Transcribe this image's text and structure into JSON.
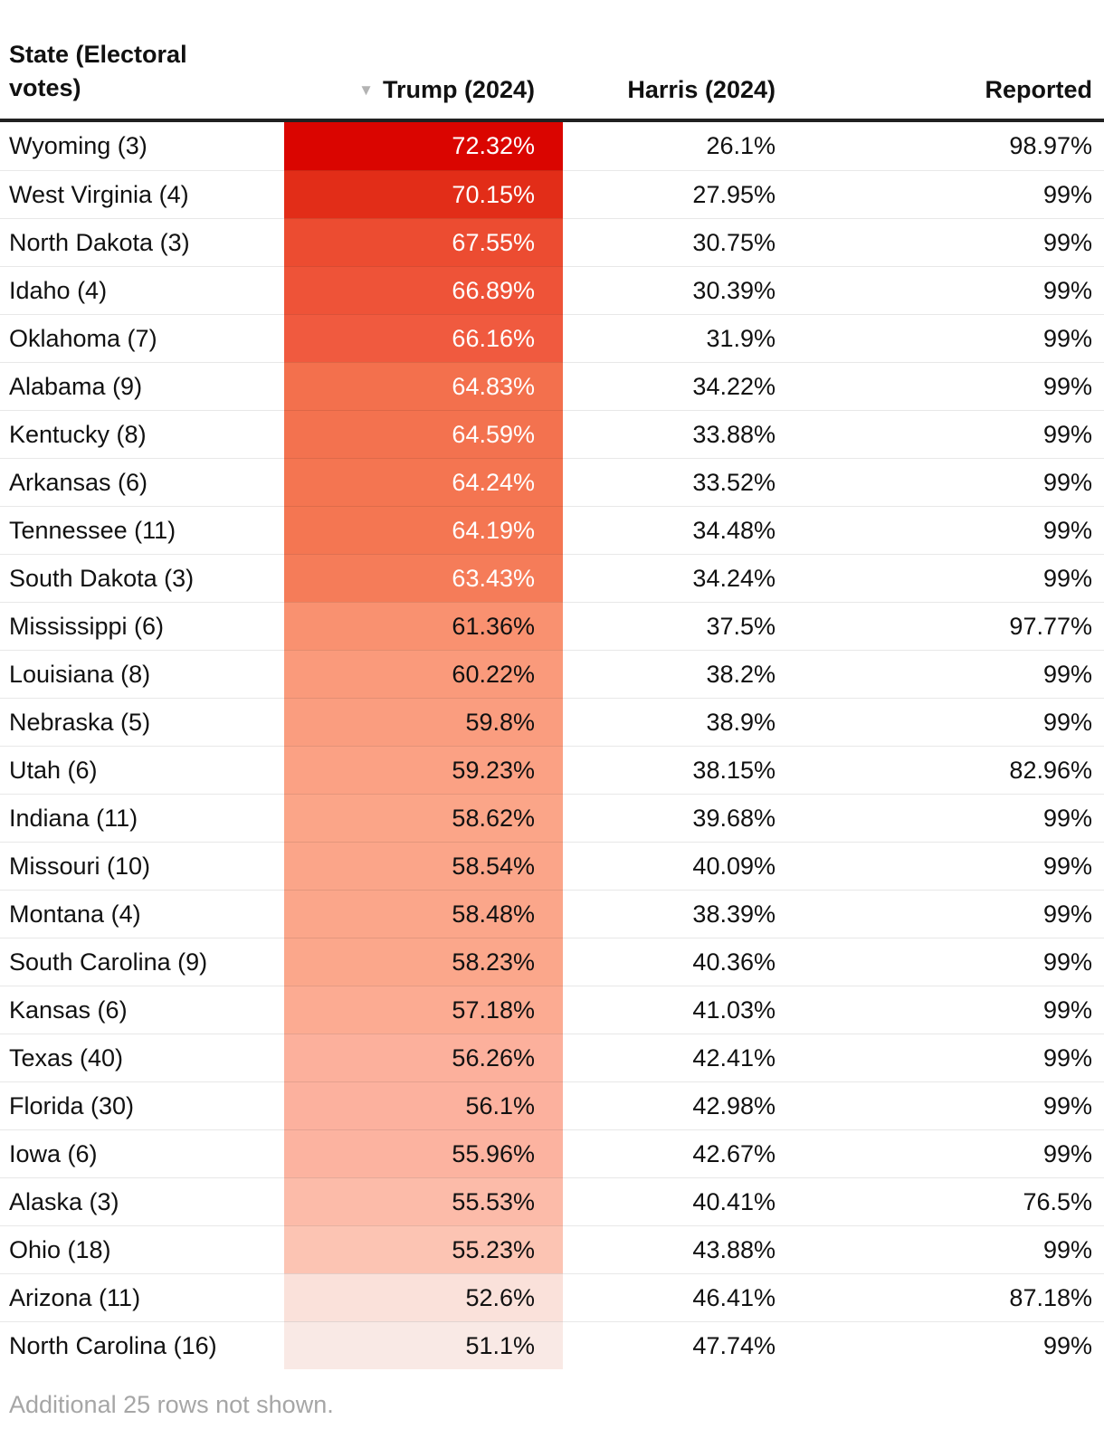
{
  "table": {
    "columns": [
      {
        "label": "State (Electoral votes)"
      },
      {
        "label": "Trump (2024)",
        "sorted": "desc"
      },
      {
        "label": "Harris (2024)"
      },
      {
        "label": "Reported"
      }
    ],
    "sort_icon": "▼",
    "rows": [
      {
        "state": "Wyoming (3)",
        "trump": "72.32%",
        "harris": "26.1%",
        "reported": "98.97%",
        "color": "#da0500",
        "text_color": "#ffffff"
      },
      {
        "state": "West Virginia (4)",
        "trump": "70.15%",
        "harris": "27.95%",
        "reported": "99%",
        "color": "#e22d18",
        "text_color": "#ffffff"
      },
      {
        "state": "North Dakota (3)",
        "trump": "67.55%",
        "harris": "30.75%",
        "reported": "99%",
        "color": "#ec4c31",
        "text_color": "#ffffff"
      },
      {
        "state": "Idaho (4)",
        "trump": "66.89%",
        "harris": "30.39%",
        "reported": "99%",
        "color": "#ee5338",
        "text_color": "#ffffff"
      },
      {
        "state": "Oklahoma (7)",
        "trump": "66.16%",
        "harris": "31.9%",
        "reported": "99%",
        "color": "#f05a3f",
        "text_color": "#ffffff"
      },
      {
        "state": "Alabama (9)",
        "trump": "64.83%",
        "harris": "34.22%",
        "reported": "99%",
        "color": "#f3704d",
        "text_color": "#ffffff"
      },
      {
        "state": "Kentucky (8)",
        "trump": "64.59%",
        "harris": "33.88%",
        "reported": "99%",
        "color": "#f3724f",
        "text_color": "#ffffff"
      },
      {
        "state": "Arkansas (6)",
        "trump": "64.24%",
        "harris": "33.52%",
        "reported": "99%",
        "color": "#f47551",
        "text_color": "#ffffff"
      },
      {
        "state": "Tennessee (11)",
        "trump": "64.19%",
        "harris": "34.48%",
        "reported": "99%",
        "color": "#f47652",
        "text_color": "#ffffff"
      },
      {
        "state": "South Dakota (3)",
        "trump": "63.43%",
        "harris": "34.24%",
        "reported": "99%",
        "color": "#f57c59",
        "text_color": "#ffffff"
      },
      {
        "state": "Mississippi (6)",
        "trump": "61.36%",
        "harris": "37.5%",
        "reported": "97.77%",
        "color": "#f99170",
        "text_color": "#111111"
      },
      {
        "state": "Louisiana (8)",
        "trump": "60.22%",
        "harris": "38.2%",
        "reported": "99%",
        "color": "#fa9a7b",
        "text_color": "#111111"
      },
      {
        "state": "Nebraska (5)",
        "trump": "59.8%",
        "harris": "38.9%",
        "reported": "99%",
        "color": "#fa9d7f",
        "text_color": "#111111"
      },
      {
        "state": "Utah (6)",
        "trump": "59.23%",
        "harris": "38.15%",
        "reported": "82.96%",
        "color": "#fba184",
        "text_color": "#111111"
      },
      {
        "state": "Indiana (11)",
        "trump": "58.62%",
        "harris": "39.68%",
        "reported": "99%",
        "color": "#fba588",
        "text_color": "#111111"
      },
      {
        "state": "Missouri (10)",
        "trump": "58.54%",
        "harris": "40.09%",
        "reported": "99%",
        "color": "#fba589",
        "text_color": "#111111"
      },
      {
        "state": "Montana (4)",
        "trump": "58.48%",
        "harris": "38.39%",
        "reported": "99%",
        "color": "#fba68a",
        "text_color": "#111111"
      },
      {
        "state": "South Carolina (9)",
        "trump": "58.23%",
        "harris": "40.36%",
        "reported": "99%",
        "color": "#fba78b",
        "text_color": "#111111"
      },
      {
        "state": "Kansas (6)",
        "trump": "57.18%",
        "harris": "41.03%",
        "reported": "99%",
        "color": "#fcab92",
        "text_color": "#111111"
      },
      {
        "state": "Texas (40)",
        "trump": "56.26%",
        "harris": "42.41%",
        "reported": "99%",
        "color": "#fcb09c",
        "text_color": "#111111"
      },
      {
        "state": "Florida (30)",
        "trump": "56.1%",
        "harris": "42.98%",
        "reported": "99%",
        "color": "#fcb19e",
        "text_color": "#111111"
      },
      {
        "state": "Iowa (6)",
        "trump": "55.96%",
        "harris": "42.67%",
        "reported": "99%",
        "color": "#fcb3a0",
        "text_color": "#111111"
      },
      {
        "state": "Alaska (3)",
        "trump": "55.53%",
        "harris": "40.41%",
        "reported": "76.5%",
        "color": "#fcbba9",
        "text_color": "#111111"
      },
      {
        "state": "Ohio (18)",
        "trump": "55.23%",
        "harris": "43.88%",
        "reported": "99%",
        "color": "#fcc4b3",
        "text_color": "#111111"
      },
      {
        "state": "Arizona (11)",
        "trump": "52.6%",
        "harris": "46.41%",
        "reported": "87.18%",
        "color": "#fae1da",
        "text_color": "#111111"
      },
      {
        "state": "North Carolina (16)",
        "trump": "51.1%",
        "harris": "47.74%",
        "reported": "99%",
        "color": "#f9e9e5",
        "text_color": "#111111"
      }
    ],
    "footer_note": "Additional 25 rows not shown."
  },
  "chart_data": {
    "type": "table",
    "title": "",
    "columns": [
      "State (Electoral votes)",
      "Trump (2024)",
      "Harris (2024)",
      "Reported"
    ],
    "units": "percent",
    "sort": {
      "column": "Trump (2024)",
      "direction": "desc"
    },
    "heatmap_column": "Trump (2024)",
    "heatmap_colors": {
      "high": "#da0500",
      "low": "#f9e9e5"
    },
    "rows": [
      [
        "Wyoming (3)",
        72.32,
        26.1,
        98.97
      ],
      [
        "West Virginia (4)",
        70.15,
        27.95,
        99
      ],
      [
        "North Dakota (3)",
        67.55,
        30.75,
        99
      ],
      [
        "Idaho (4)",
        66.89,
        30.39,
        99
      ],
      [
        "Oklahoma (7)",
        66.16,
        31.9,
        99
      ],
      [
        "Alabama (9)",
        64.83,
        34.22,
        99
      ],
      [
        "Kentucky (8)",
        64.59,
        33.88,
        99
      ],
      [
        "Arkansas (6)",
        64.24,
        33.52,
        99
      ],
      [
        "Tennessee (11)",
        64.19,
        34.48,
        99
      ],
      [
        "South Dakota (3)",
        63.43,
        34.24,
        99
      ],
      [
        "Mississippi (6)",
        61.36,
        37.5,
        97.77
      ],
      [
        "Louisiana (8)",
        60.22,
        38.2,
        99
      ],
      [
        "Nebraska (5)",
        59.8,
        38.9,
        99
      ],
      [
        "Utah (6)",
        59.23,
        38.15,
        82.96
      ],
      [
        "Indiana (11)",
        58.62,
        39.68,
        99
      ],
      [
        "Missouri (10)",
        58.54,
        40.09,
        99
      ],
      [
        "Montana (4)",
        58.48,
        38.39,
        99
      ],
      [
        "South Carolina (9)",
        58.23,
        40.36,
        99
      ],
      [
        "Kansas (6)",
        57.18,
        41.03,
        99
      ],
      [
        "Texas (40)",
        56.26,
        42.41,
        99
      ],
      [
        "Florida (30)",
        56.1,
        42.98,
        99
      ],
      [
        "Iowa (6)",
        55.96,
        42.67,
        99
      ],
      [
        "Alaska (3)",
        55.53,
        40.41,
        76.5
      ],
      [
        "Ohio (18)",
        55.23,
        43.88,
        99
      ],
      [
        "Arizona (11)",
        52.6,
        46.41,
        87.18
      ],
      [
        "North Carolina (16)",
        51.1,
        47.74,
        99
      ]
    ],
    "note": "Additional 25 rows not shown."
  }
}
